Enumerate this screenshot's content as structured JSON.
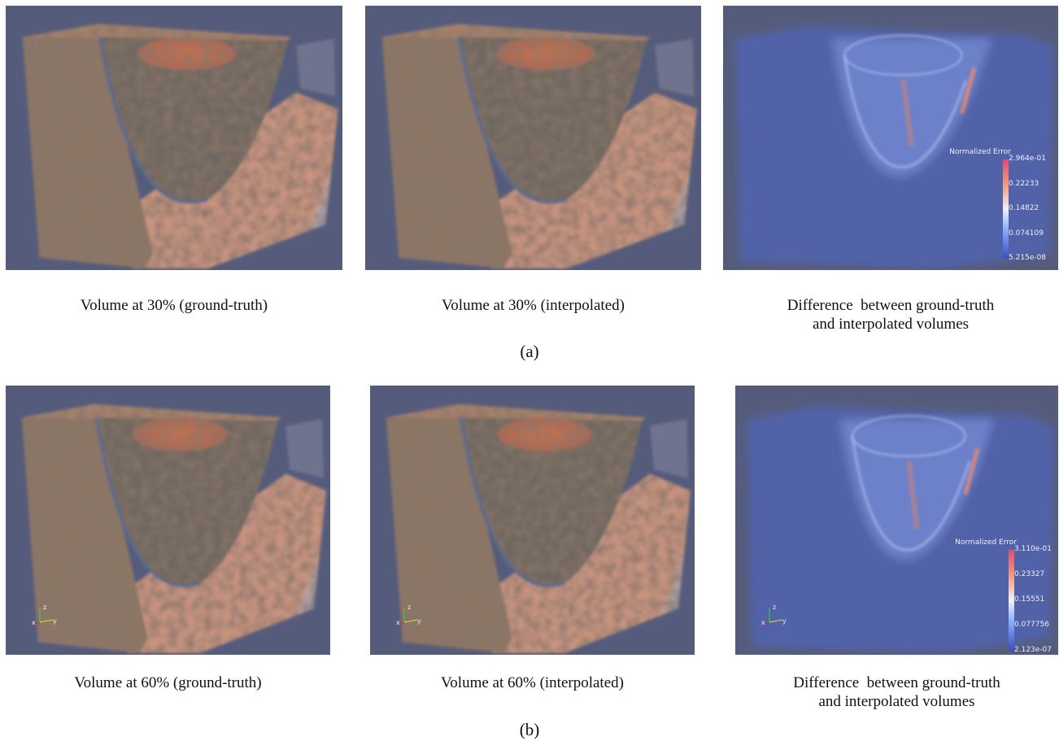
{
  "figure": {
    "rows": [
      {
        "label": "(a)",
        "panels": [
          {
            "caption": [
              "Volume at 30% (ground-truth)"
            ]
          },
          {
            "caption": [
              "Volume at 30% (interpolated)"
            ]
          },
          {
            "caption": [
              "Difference  between ground-truth",
              "and interpolated volumes"
            ],
            "colorbar": {
              "title": "Normalized Error",
              "ticks": [
                "2.964e-01",
                "0.22233",
                "0.14822",
                "0.074109",
                "5.215e-08"
              ]
            }
          }
        ]
      },
      {
        "label": "(b)",
        "panels": [
          {
            "caption": [
              "Volume at 60% (ground-truth)"
            ],
            "axes": [
              "z",
              "x",
              "y"
            ]
          },
          {
            "caption": [
              "Volume at 60% (interpolated)"
            ],
            "axes": [
              "z",
              "x",
              "y"
            ]
          },
          {
            "caption": [
              "Difference  between ground-truth",
              "and interpolated volumes"
            ],
            "axes": [
              "z",
              "x",
              "y"
            ],
            "colorbar": {
              "title": "Normalized Error",
              "ticks": [
                "3.110e-01",
                "0.23327",
                "0.15551",
                "0.077756",
                "2.123e-07"
              ]
            }
          }
        ]
      }
    ]
  }
}
